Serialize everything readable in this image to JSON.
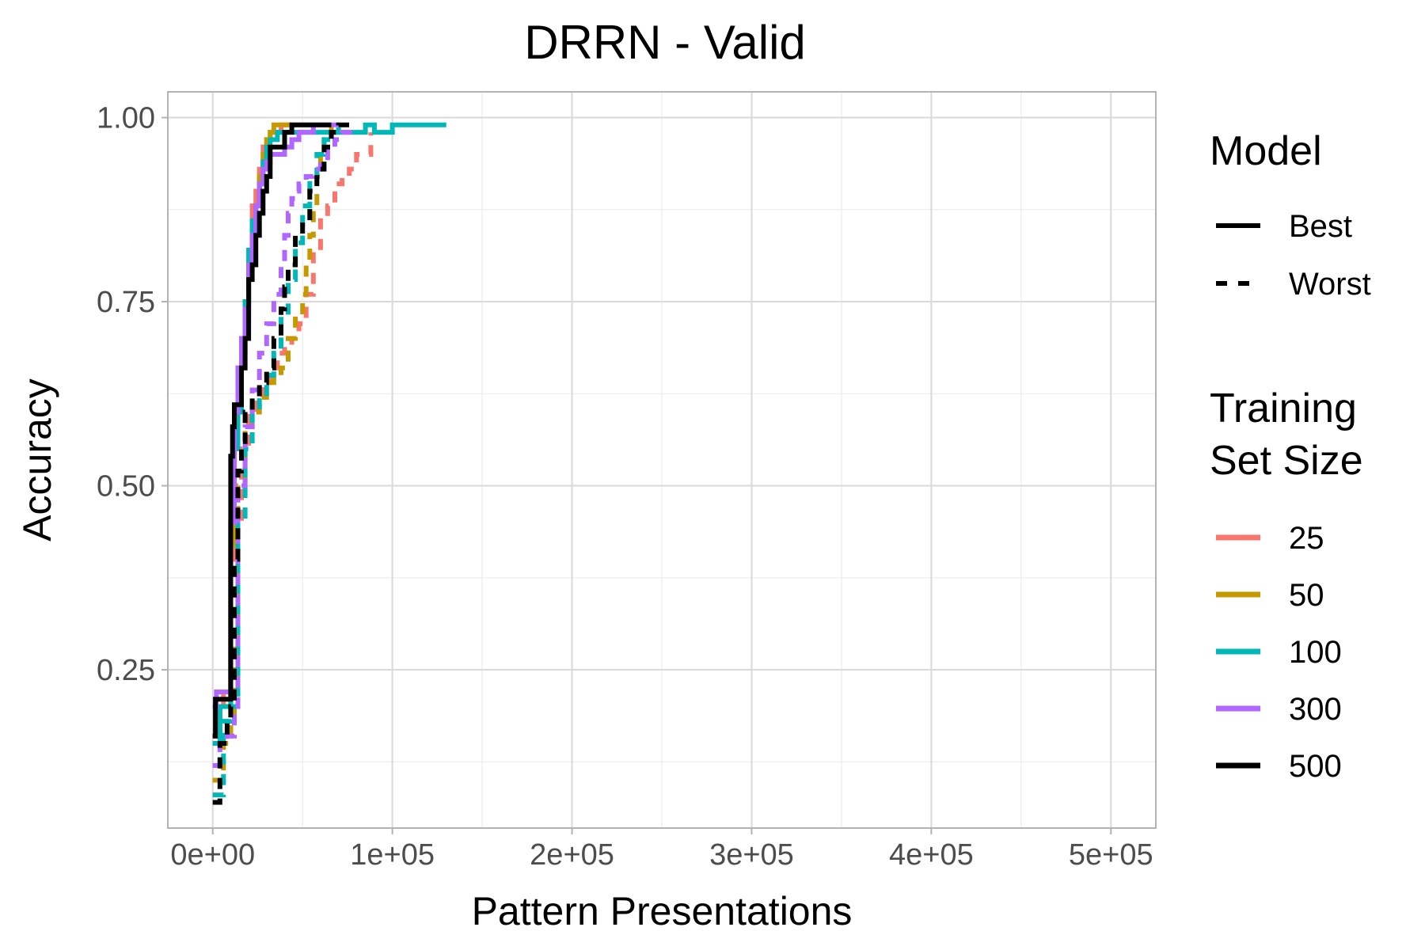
{
  "chart_data": {
    "type": "line",
    "title": "DRRN - Valid",
    "xlabel": "Pattern Presentations",
    "ylabel": "Accuracy",
    "xlim": [
      -25000,
      525000
    ],
    "ylim": [
      0.035,
      1.035
    ],
    "x_ticks": [
      {
        "value": 0,
        "label": "0e+00"
      },
      {
        "value": 100000,
        "label": "1e+05"
      },
      {
        "value": 200000,
        "label": "2e+05"
      },
      {
        "value": 300000,
        "label": "3e+05"
      },
      {
        "value": 400000,
        "label": "4e+05"
      },
      {
        "value": 500000,
        "label": "5e+05"
      }
    ],
    "y_ticks": [
      {
        "value": 0.25,
        "label": "0.25"
      },
      {
        "value": 0.5,
        "label": "0.50"
      },
      {
        "value": 0.75,
        "label": "0.75"
      },
      {
        "value": 1.0,
        "label": "1.00"
      }
    ],
    "grid": true,
    "legend_position": "right",
    "legend_model": {
      "title": "Model",
      "entries": [
        {
          "label": "Best",
          "style": "solid"
        },
        {
          "label": "Worst",
          "style": "dashed"
        }
      ]
    },
    "legend_size": {
      "title_lines": [
        "Training",
        "Set Size"
      ],
      "entries": [
        {
          "label": "25",
          "color": "#F8766D"
        },
        {
          "label": "50",
          "color": "#C49A00"
        },
        {
          "label": "100",
          "color": "#00B8B8"
        },
        {
          "label": "300",
          "color": "#B066FF"
        },
        {
          "label": "500",
          "color": "#000000"
        }
      ]
    },
    "series": [
      {
        "size": "25",
        "model": "Best",
        "color": "#F8766D",
        "style": "solid",
        "x": [
          0,
          4000,
          6000,
          8000,
          10000,
          12000,
          14000,
          16000,
          18000,
          20000,
          22000,
          24000,
          26000,
          28000,
          30000,
          32000,
          35000,
          38000,
          42000,
          48000,
          55000
        ],
        "y": [
          0.16,
          0.2,
          0.22,
          0.22,
          0.4,
          0.58,
          0.62,
          0.66,
          0.72,
          0.8,
          0.88,
          0.9,
          0.93,
          0.96,
          0.97,
          0.98,
          0.98,
          0.99,
          0.99,
          0.99,
          0.99
        ]
      },
      {
        "size": "25",
        "model": "Worst",
        "color": "#F8766D",
        "style": "dashed",
        "x": [
          0,
          5000,
          10000,
          12000,
          14000,
          16000,
          20000,
          24000,
          28000,
          32000,
          36000,
          40000,
          44000,
          48000,
          52000,
          56000,
          60000,
          64000,
          68000,
          72000,
          76000,
          80000,
          84000,
          88000
        ],
        "y": [
          0.1,
          0.16,
          0.18,
          0.22,
          0.45,
          0.55,
          0.6,
          0.62,
          0.64,
          0.66,
          0.68,
          0.69,
          0.7,
          0.72,
          0.76,
          0.82,
          0.86,
          0.88,
          0.91,
          0.92,
          0.93,
          0.95,
          0.95,
          0.98
        ]
      },
      {
        "size": "50",
        "model": "Best",
        "color": "#C49A00",
        "style": "solid",
        "x": [
          0,
          4000,
          8000,
          10000,
          12000,
          14000,
          16000,
          18000,
          20000,
          22000,
          24000,
          26000,
          28000,
          30000,
          32000,
          34000,
          36000,
          40000,
          45000
        ],
        "y": [
          0.16,
          0.2,
          0.2,
          0.42,
          0.6,
          0.66,
          0.7,
          0.75,
          0.8,
          0.85,
          0.88,
          0.92,
          0.95,
          0.97,
          0.98,
          0.99,
          0.99,
          0.99,
          0.99
        ]
      },
      {
        "size": "50",
        "model": "Worst",
        "color": "#C49A00",
        "style": "dashed",
        "x": [
          0,
          6000,
          10000,
          12000,
          14000,
          18000,
          22000,
          26000,
          30000,
          34000,
          38000,
          42000,
          46000,
          50000,
          52000,
          54000,
          56000,
          58000,
          60000,
          62000,
          64000,
          66000
        ],
        "y": [
          0.1,
          0.15,
          0.18,
          0.3,
          0.5,
          0.58,
          0.6,
          0.62,
          0.64,
          0.65,
          0.66,
          0.7,
          0.73,
          0.76,
          0.8,
          0.84,
          0.88,
          0.92,
          0.95,
          0.97,
          0.98,
          0.99
        ]
      },
      {
        "size": "100",
        "model": "Best",
        "color": "#00B8B8",
        "style": "solid",
        "x": [
          0,
          4000,
          8000,
          10000,
          12000,
          14000,
          16000,
          18000,
          20000,
          22000,
          24000,
          26000,
          28000,
          30000,
          32000,
          36000,
          40000,
          45000,
          55000,
          65000,
          75000,
          85000,
          90000,
          100000,
          110000,
          120000,
          130000
        ],
        "y": [
          0.15,
          0.2,
          0.2,
          0.45,
          0.55,
          0.6,
          0.68,
          0.75,
          0.82,
          0.86,
          0.88,
          0.91,
          0.94,
          0.96,
          0.97,
          0.98,
          0.98,
          0.98,
          0.98,
          0.98,
          0.98,
          0.99,
          0.98,
          0.99,
          0.99,
          0.99,
          0.99
        ]
      },
      {
        "size": "100",
        "model": "Worst",
        "color": "#00B8B8",
        "style": "dashed",
        "x": [
          0,
          6000,
          10000,
          14000,
          18000,
          22000,
          26000,
          30000,
          34000,
          38000,
          42000,
          46000,
          50000,
          54000,
          58000,
          62000,
          66000,
          70000
        ],
        "y": [
          0.08,
          0.18,
          0.2,
          0.45,
          0.55,
          0.6,
          0.62,
          0.65,
          0.68,
          0.73,
          0.78,
          0.83,
          0.88,
          0.92,
          0.95,
          0.97,
          0.98,
          0.99
        ]
      },
      {
        "size": "300",
        "model": "Best",
        "color": "#B066FF",
        "style": "solid",
        "x": [
          0,
          2000,
          6000,
          8000,
          10000,
          12000,
          14000,
          16000,
          18000,
          20000,
          22000,
          24000,
          26000,
          28000,
          30000,
          32000,
          36000,
          40000,
          44000,
          48000,
          52000,
          56000,
          60000,
          65000,
          70000
        ],
        "y": [
          0.2,
          0.22,
          0.22,
          0.22,
          0.45,
          0.6,
          0.66,
          0.7,
          0.74,
          0.8,
          0.84,
          0.88,
          0.91,
          0.93,
          0.94,
          0.95,
          0.95,
          0.96,
          0.97,
          0.98,
          0.98,
          0.99,
          0.99,
          0.99,
          0.99
        ]
      },
      {
        "size": "300",
        "model": "Worst",
        "color": "#B066FF",
        "style": "dashed",
        "x": [
          0,
          4000,
          8000,
          12000,
          14000,
          18000,
          22000,
          26000,
          30000,
          34000,
          38000,
          40000,
          42000,
          44000,
          46000,
          48000,
          52000,
          56000,
          60000,
          64000,
          68000,
          72000,
          78000
        ],
        "y": [
          0.12,
          0.15,
          0.16,
          0.2,
          0.5,
          0.58,
          0.63,
          0.68,
          0.72,
          0.76,
          0.8,
          0.84,
          0.87,
          0.89,
          0.9,
          0.91,
          0.92,
          0.93,
          0.94,
          0.96,
          0.97,
          0.98,
          0.98
        ]
      },
      {
        "size": "500",
        "model": "Best",
        "color": "#000000",
        "style": "solid",
        "x": [
          0,
          1500,
          3000,
          6000,
          9000,
          10000,
          11000,
          12000,
          14000,
          16000,
          18000,
          20000,
          22000,
          24000,
          26000,
          28000,
          30000,
          32000,
          34000,
          36000,
          40000,
          44000,
          50000,
          56000,
          62000,
          66000
        ],
        "y": [
          0.16,
          0.21,
          0.21,
          0.21,
          0.21,
          0.54,
          0.58,
          0.61,
          0.61,
          0.66,
          0.7,
          0.78,
          0.8,
          0.84,
          0.87,
          0.9,
          0.92,
          0.96,
          0.96,
          0.96,
          0.98,
          0.99,
          0.99,
          0.99,
          0.99,
          0.99
        ]
      },
      {
        "size": "500",
        "model": "Worst",
        "color": "#000000",
        "style": "dashed",
        "x": [
          0,
          4000,
          8000,
          10000,
          12000,
          14000,
          16000,
          18000,
          22000,
          26000,
          30000,
          34000,
          38000,
          40000,
          42000,
          46000,
          50000,
          54000,
          58000,
          62000,
          66000,
          70000,
          76000
        ],
        "y": [
          0.07,
          0.15,
          0.18,
          0.2,
          0.4,
          0.52,
          0.56,
          0.6,
          0.62,
          0.64,
          0.66,
          0.7,
          0.74,
          0.77,
          0.8,
          0.84,
          0.86,
          0.9,
          0.93,
          0.96,
          0.98,
          0.99,
          0.99
        ]
      }
    ]
  }
}
